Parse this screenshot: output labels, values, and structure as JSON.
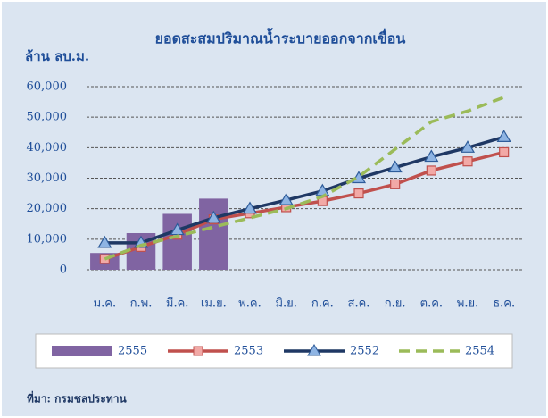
{
  "chart_data": {
    "type": "combo",
    "title": "ยอดสะสมปริมาณน้ำระบายออกจากเขื่อน",
    "y_label": "ล้าน ลบ.ม.",
    "source": "ที่มา: กรมชลประทาน",
    "categories": [
      "ม.ค.",
      "ก.พ.",
      "มี.ค.",
      "เม.ย.",
      "พ.ค.",
      "มิ.ย.",
      "ก.ค.",
      "ส.ค.",
      "ก.ย.",
      "ต.ค.",
      "พ.ย.",
      "ธ.ค."
    ],
    "series": [
      {
        "name": "2555",
        "type": "bar",
        "color": "#8064a2",
        "values": [
          5500,
          12000,
          18300,
          23300,
          null,
          null,
          null,
          null,
          null,
          null,
          null,
          null
        ]
      },
      {
        "name": "2553",
        "type": "line",
        "marker": "square",
        "color": "#c0504d",
        "values": [
          3500,
          7500,
          11500,
          16500,
          18500,
          20500,
          22500,
          25000,
          28000,
          32500,
          35500,
          38500
        ]
      },
      {
        "name": "2552",
        "type": "line",
        "marker": "triangle",
        "color": "#1f3864",
        "values": [
          8800,
          8800,
          13000,
          17000,
          20000,
          22800,
          25800,
          30000,
          33500,
          37000,
          40000,
          43500
        ]
      },
      {
        "name": "2554",
        "type": "line",
        "dashed": true,
        "color": "#9bbb59",
        "values": [
          3500,
          8000,
          11000,
          14000,
          17000,
          20000,
          24000,
          30500,
          39500,
          48500,
          52000,
          56500
        ]
      }
    ],
    "ylim": [
      0,
      60000
    ],
    "yticks": [
      0,
      {
        "value": 10000,
        "label": "10,000"
      },
      {
        "value": 20000,
        "label": "20,000"
      },
      {
        "value": 30000,
        "label": "30,000"
      },
      {
        "value": 40000,
        "label": "40,000"
      },
      {
        "value": 50000,
        "label": "50,000"
      },
      {
        "value": 60000,
        "label": "60,000"
      }
    ],
    "grid": true,
    "legend": "bottom"
  }
}
